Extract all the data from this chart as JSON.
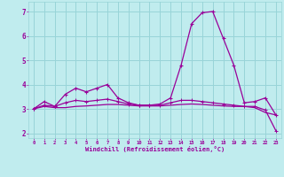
{
  "xlabel": "Windchill (Refroidissement éolien,°C)",
  "background_color": "#c0ecee",
  "grid_color": "#98d4d8",
  "line_color": "#990099",
  "hours": [
    0,
    1,
    2,
    3,
    4,
    5,
    6,
    7,
    8,
    9,
    10,
    11,
    12,
    13,
    14,
    15,
    16,
    17,
    18,
    19,
    20,
    21,
    22,
    23
  ],
  "line1": [
    3.0,
    3.3,
    3.1,
    3.6,
    3.85,
    3.7,
    3.85,
    4.0,
    3.45,
    3.25,
    3.15,
    3.15,
    3.2,
    3.45,
    4.8,
    6.5,
    6.95,
    7.0,
    5.9,
    4.8,
    3.25,
    3.3,
    3.45,
    2.75
  ],
  "line2": [
    3.0,
    3.1,
    3.05,
    3.05,
    3.1,
    3.12,
    3.15,
    3.18,
    3.18,
    3.15,
    3.12,
    3.12,
    3.12,
    3.15,
    3.18,
    3.2,
    3.18,
    3.15,
    3.12,
    3.1,
    3.1,
    3.05,
    2.85,
    2.75
  ],
  "line3": [
    3.0,
    3.15,
    3.1,
    3.25,
    3.35,
    3.3,
    3.35,
    3.4,
    3.3,
    3.2,
    3.15,
    3.15,
    3.15,
    3.25,
    3.35,
    3.35,
    3.3,
    3.25,
    3.2,
    3.15,
    3.1,
    3.1,
    2.95,
    2.1
  ],
  "ylim": [
    1.8,
    7.4
  ],
  "yticks": [
    2,
    3,
    4,
    5,
    6,
    7
  ],
  "xlim": [
    -0.5,
    23.5
  ],
  "xticks": [
    0,
    1,
    2,
    3,
    4,
    5,
    6,
    7,
    8,
    9,
    10,
    11,
    12,
    13,
    14,
    15,
    16,
    17,
    18,
    19,
    20,
    21,
    22,
    23
  ]
}
